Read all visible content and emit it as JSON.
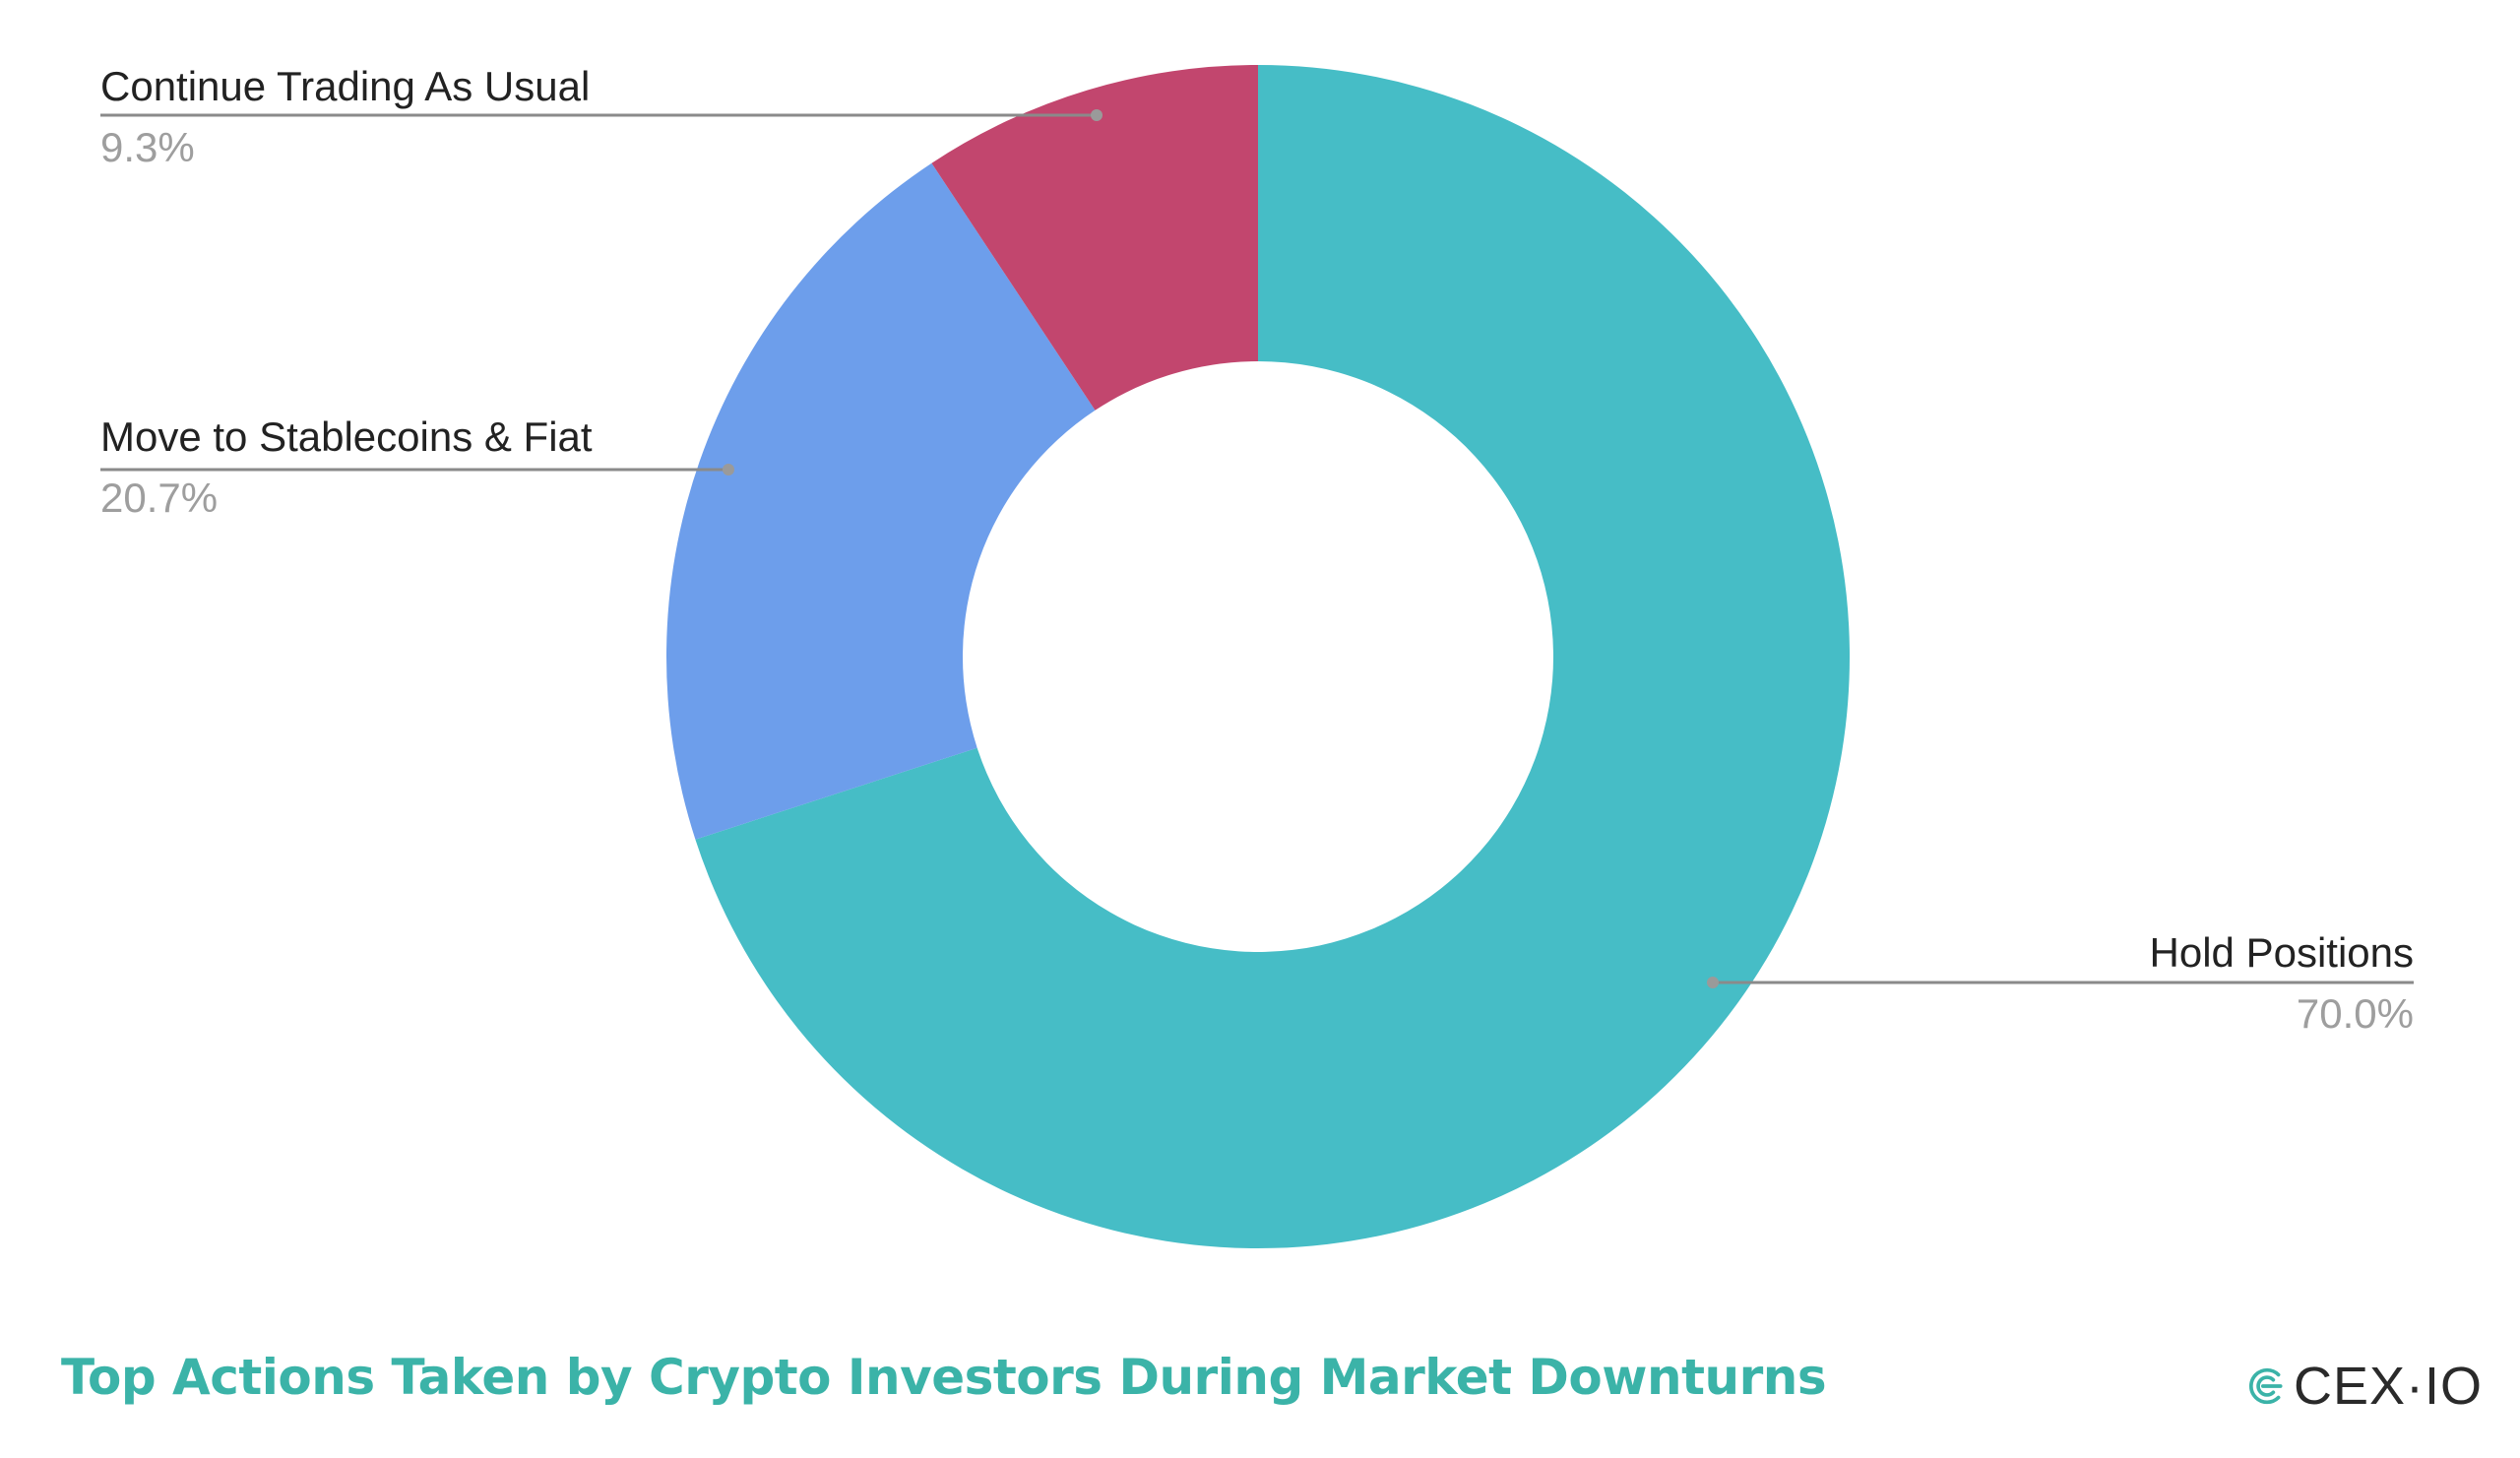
{
  "chart_data": {
    "type": "pie",
    "style": "donut",
    "title": "Top Actions Taken by Crypto Investors During Market Downturns",
    "slices": [
      {
        "label": "Hold Positions",
        "value": 70.0,
        "display": "70.0%",
        "color": "#46bdc6"
      },
      {
        "label": "Move to Stablecoins & Fiat",
        "value": 20.7,
        "display": "20.7%",
        "color": "#6d9eeb"
      },
      {
        "label": "Continue Trading As Usual",
        "value": 9.3,
        "display": "9.3%",
        "color": "#c2466e"
      }
    ],
    "start_position": "top",
    "direction": "clockwise",
    "legend": "none",
    "labels": "outside with leader lines"
  },
  "colors": {
    "title": "#3bb3a8",
    "brand_accent": "#3bb3a8",
    "brand_text": "#2a2a2a",
    "label_text": "#222222",
    "value_text": "#9e9e9e"
  },
  "brand": {
    "name": "CEX·IO",
    "icon": "cex-io-logo-icon"
  }
}
